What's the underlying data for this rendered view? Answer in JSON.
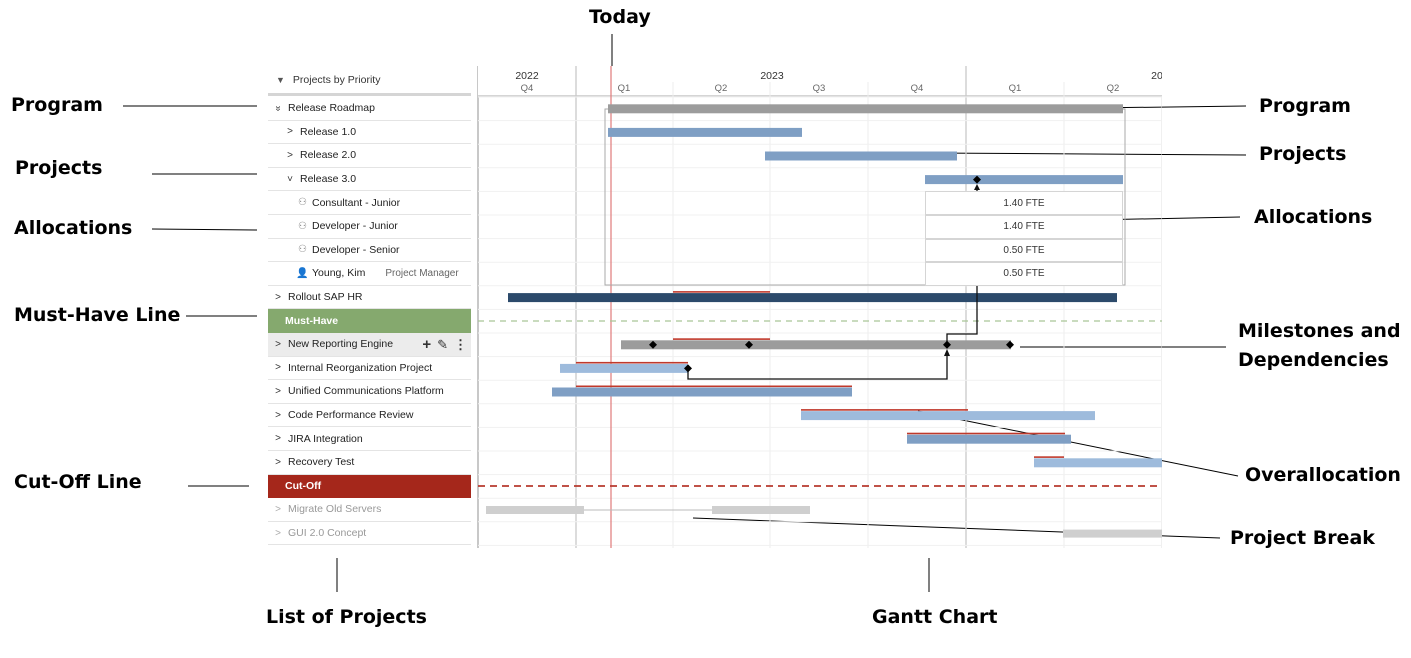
{
  "annotations": {
    "today": "Today",
    "program_left": "Program",
    "projects_left": "Projects",
    "allocations_left": "Allocations",
    "must_have_line": "Must-Have Line",
    "cut_off_line": "Cut-Off Line",
    "list_of_projects": "List of Projects",
    "gantt_chart": "Gantt Chart",
    "program_right": "Program",
    "projects_right": "Projects",
    "allocations_right": "Allocations",
    "milestones_line1": "Milestones and",
    "milestones_line2": "Dependencies",
    "overallocation": "Overallocation",
    "project_break": "Project Break"
  },
  "list": {
    "header": "Projects by Priority",
    "rows": [
      {
        "label": "Release Roadmap",
        "indent": 0,
        "chevron": "double-down"
      },
      {
        "label": "Release 1.0",
        "indent": 1,
        "chevron": "right"
      },
      {
        "label": "Release 2.0",
        "indent": 1,
        "chevron": "right"
      },
      {
        "label": "Release 3.0",
        "indent": 1,
        "chevron": "down"
      },
      {
        "label": "Consultant - Junior",
        "indent": 2,
        "icon": "person-outline-icon"
      },
      {
        "label": "Developer - Junior",
        "indent": 2,
        "icon": "person-outline-icon"
      },
      {
        "label": "Developer - Senior",
        "indent": 2,
        "icon": "person-outline-icon"
      },
      {
        "label": "Young, Kim",
        "indent": 2,
        "icon": "person-filled-icon",
        "role": "Project Manager"
      },
      {
        "label": "Rollout SAP HR",
        "indent": 0,
        "chevron": "right"
      },
      {
        "label": "Must-Have",
        "type": "must-have"
      },
      {
        "label": "New Reporting Engine",
        "indent": 0,
        "chevron": "right",
        "hover": true
      },
      {
        "label": "Internal Reorganization Project",
        "indent": 0,
        "chevron": "right"
      },
      {
        "label": "Unified Communications Platform",
        "indent": 0,
        "chevron": "right"
      },
      {
        "label": "Code Performance Review",
        "indent": 0,
        "chevron": "right"
      },
      {
        "label": "JIRA Integration",
        "indent": 0,
        "chevron": "right"
      },
      {
        "label": "Recovery Test",
        "indent": 0,
        "chevron": "right"
      },
      {
        "label": "Cut-Off",
        "type": "cut-off"
      },
      {
        "label": "Migrate Old Servers",
        "indent": 0,
        "chevron": "right",
        "gray": true
      },
      {
        "label": "GUI 2.0 Concept",
        "indent": 0,
        "chevron": "right",
        "gray": true
      }
    ]
  },
  "timeline": {
    "years": [
      "2022",
      "2023",
      "20"
    ],
    "quarters": [
      "Q4",
      "Q1",
      "Q2",
      "Q3",
      "Q4",
      "Q1",
      "Q2"
    ]
  },
  "allocations": [
    "1.40 FTE",
    "1.40 FTE",
    "0.50 FTE",
    "0.50 FTE"
  ],
  "colors": {
    "program_bar": "#9c9c9c",
    "project_bar": "#7f9fc4",
    "light_project_bar": "#9ebbdc",
    "dark_project_bar": "#2c4a6b",
    "gray_bar": "#cfcfcf",
    "overallocation": "#c0392b",
    "today_line": "#e07a7a",
    "must_have": "#85a96e",
    "cut_off": "#a5271b"
  },
  "icons": {
    "collapse": "triangle-down-icon",
    "add": "plus-icon",
    "edit": "pencil-icon",
    "more": "kebab-menu-icon",
    "milestone": "diamond-icon"
  }
}
